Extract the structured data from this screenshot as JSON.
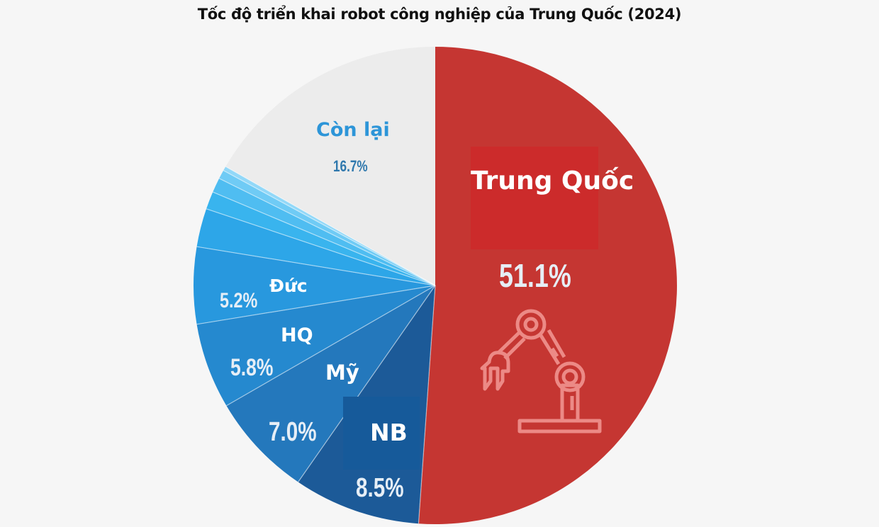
{
  "title": "Tốc độ triển khai robot công nghiệp của Trung Quốc (2024)",
  "chart_data": {
    "type": "pie",
    "title": "Tốc độ triển khai robot công nghiệp của Trung Quốc (2024)",
    "start_angle_deg": 0,
    "direction": "clockwise",
    "center": [
      614,
      403
    ],
    "radius": [
      341,
      337
    ],
    "slices": [
      {
        "label": "Trung Quốc",
        "value": 51.1,
        "display": "51.1%",
        "color": "#c53632"
      },
      {
        "label": "NB",
        "value": 8.5,
        "display": "8.5%",
        "color": "#1c5a98"
      },
      {
        "label": "Mỹ",
        "value": 7.0,
        "display": "7.0%",
        "color": "#2478bc"
      },
      {
        "label": "HQ",
        "value": 5.8,
        "display": "5.8%",
        "color": "#2589cf"
      },
      {
        "label": "Đức",
        "value": 5.2,
        "display": "5.2%",
        "color": "#2898de"
      },
      {
        "label": "",
        "value": 2.6,
        "display": "",
        "color": "#2da6e8"
      },
      {
        "label": "",
        "value": 1.2,
        "display": "",
        "color": "#39b4ee"
      },
      {
        "label": "",
        "value": 1.0,
        "display": "",
        "color": "#4fbdf1"
      },
      {
        "label": "",
        "value": 0.6,
        "display": "",
        "color": "#6fcbf5"
      },
      {
        "label": "",
        "value": 0.3,
        "display": "",
        "color": "#92d8f8"
      },
      {
        "label": "Còn lại",
        "value": 16.7,
        "display": "16.7%",
        "color": "#ececec"
      }
    ]
  },
  "labels": {
    "china_name": "Trung Quốc",
    "china_pct": "51.1%",
    "other_name": "Còn lại",
    "other_pct": "16.7%",
    "germany_name": "Đức",
    "germany_pct": "5.2%",
    "korea_name": "HQ",
    "korea_pct": "5.8%",
    "usa_name": "Mỹ",
    "usa_pct": "7.0%",
    "japan_name": "NB",
    "japan_pct": "8.5%"
  },
  "icons": {
    "china": "robot-arm-icon"
  }
}
